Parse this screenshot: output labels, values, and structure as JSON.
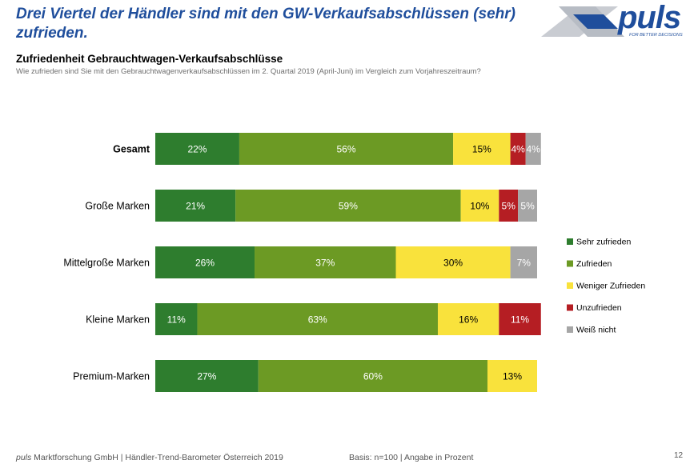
{
  "header": {
    "headline": "Drei Viertel der Händler sind mit den GW-Verkaufsabschlüssen (sehr) zufrieden."
  },
  "logo": {
    "word": "puls",
    "tagline": "FOR BETTER DECISIONS"
  },
  "chart_data": {
    "type": "bar",
    "orientation": "horizontal",
    "stacked": true,
    "title": "Zufriedenheit Gebrauchtwagen-Verkaufsabschlüsse",
    "subtitle": "Wie zufrieden sind Sie mit den Gebrauchtwagenverkaufsabschlüssen im 2. Quartal 2019 (April-Juni) im Vergleich zum Vorjahreszeitraum?",
    "categories": [
      "Gesamt",
      "Große Marken",
      "Mittelgroße Marken",
      "Kleine Marken",
      "Premium-Marken"
    ],
    "series": [
      {
        "name": "Sehr zufrieden",
        "color": "#2e7d2e",
        "values": [
          22,
          21,
          26,
          11,
          27
        ],
        "labels": [
          "22%",
          "21%",
          "26%",
          "11%",
          "27%"
        ]
      },
      {
        "name": "Zufrieden",
        "color": "#6c9a24",
        "values": [
          56,
          59,
          37,
          63,
          60
        ],
        "labels": [
          "56%",
          "59%",
          "37%",
          "63%",
          "60%"
        ]
      },
      {
        "name": "Weniger Zufrieden",
        "color": "#f9e23c",
        "values": [
          15,
          10,
          30,
          16,
          13
        ],
        "labels": [
          "15%",
          "10%",
          "30%",
          "16%",
          "13%"
        ]
      },
      {
        "name": "Unzufrieden",
        "color": "#b51e23",
        "values": [
          4,
          5,
          0,
          11,
          0
        ],
        "labels": [
          "4%",
          "5%",
          "",
          "11%",
          ""
        ]
      },
      {
        "name": "Weiß nicht",
        "color": "#a6a6a6",
        "values": [
          4,
          5,
          7,
          0,
          0
        ],
        "labels": [
          "4%",
          "5%",
          "7%",
          "",
          ""
        ]
      }
    ],
    "xlim": [
      0,
      100
    ],
    "grid": false,
    "legend": "right"
  },
  "footer": {
    "brand": "puls",
    "source": " Marktforschung GmbH | Händler-Trend-Barometer Österreich 2019",
    "basis": "Basis: n=100 | Angabe in Prozent",
    "page": "12"
  }
}
